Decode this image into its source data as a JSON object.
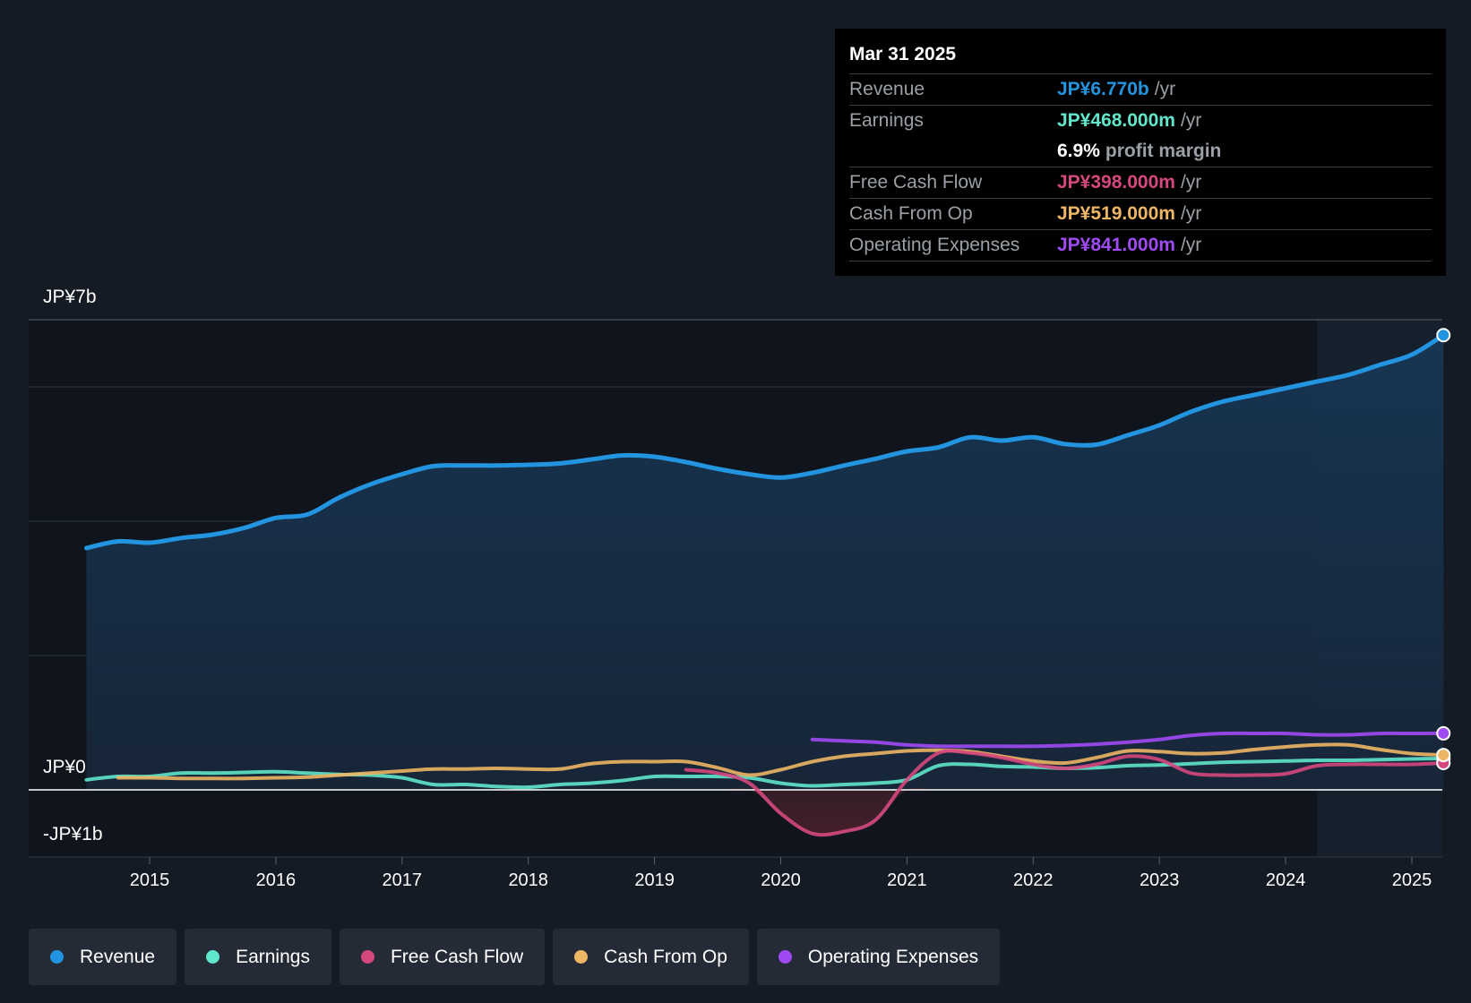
{
  "tooltip": {
    "date": "Mar 31 2025",
    "rows": [
      {
        "label": "Revenue",
        "value": "JP¥6.770b",
        "unit": "/yr",
        "color": "#2394df"
      },
      {
        "label": "Earnings",
        "value": "JP¥468.000m",
        "unit": "/yr",
        "color": "#60e6cb"
      },
      {
        "label": "",
        "value": "6.9%",
        "unit": "profit margin",
        "color": "#ffffff"
      },
      {
        "label": "Free Cash Flow",
        "value": "JP¥398.000m",
        "unit": "/yr",
        "color": "#d5487e"
      },
      {
        "label": "Cash From Op",
        "value": "JP¥519.000m",
        "unit": "/yr",
        "color": "#edb664"
      },
      {
        "label": "Operating Expenses",
        "value": "JP¥841.000m",
        "unit": "/yr",
        "color": "#a04af4"
      }
    ]
  },
  "axis": {
    "y_top_label": "JP¥7b",
    "y_zero_label": "JP¥0",
    "y_bottom_label": "-JP¥1b"
  },
  "legend": [
    {
      "label": "Revenue",
      "color": "#2394df"
    },
    {
      "label": "Earnings",
      "color": "#60e6cb"
    },
    {
      "label": "Free Cash Flow",
      "color": "#d5487e"
    },
    {
      "label": "Cash From Op",
      "color": "#edb664"
    },
    {
      "label": "Operating Expenses",
      "color": "#a04af4"
    }
  ],
  "chart_data": {
    "type": "line",
    "title": "",
    "xlabel": "",
    "ylabel": "",
    "unit": "JP¥ billions",
    "ylim": [
      -1,
      7
    ],
    "x_ticks": [
      "2015",
      "2016",
      "2017",
      "2018",
      "2019",
      "2020",
      "2021",
      "2022",
      "2023",
      "2024",
      "2025"
    ],
    "forecast_shade_start": 2024.25,
    "series": [
      {
        "name": "Revenue",
        "color": "#2394df",
        "x": [
          2014.5,
          2014.75,
          2015.0,
          2015.25,
          2015.5,
          2015.75,
          2016.0,
          2016.25,
          2016.5,
          2016.75,
          2017.0,
          2017.25,
          2017.5,
          2017.75,
          2018.0,
          2018.25,
          2018.5,
          2018.75,
          2019.0,
          2019.25,
          2019.5,
          2019.75,
          2020.0,
          2020.25,
          2020.5,
          2020.75,
          2021.0,
          2021.25,
          2021.5,
          2021.75,
          2022.0,
          2022.25,
          2022.5,
          2022.75,
          2023.0,
          2023.25,
          2023.5,
          2023.75,
          2024.0,
          2024.25,
          2024.5,
          2024.75,
          2025.0,
          2025.25
        ],
        "values": [
          3.6,
          3.7,
          3.68,
          3.75,
          3.8,
          3.9,
          4.05,
          4.1,
          4.35,
          4.55,
          4.7,
          4.82,
          4.83,
          4.83,
          4.84,
          4.86,
          4.92,
          4.98,
          4.96,
          4.88,
          4.78,
          4.7,
          4.65,
          4.72,
          4.83,
          4.93,
          5.04,
          5.1,
          5.25,
          5.2,
          5.25,
          5.15,
          5.14,
          5.28,
          5.43,
          5.63,
          5.78,
          5.88,
          5.98,
          6.08,
          6.18,
          6.33,
          6.48,
          6.77
        ]
      },
      {
        "name": "Earnings",
        "color": "#60e6cb",
        "x": [
          2014.5,
          2014.75,
          2015.0,
          2015.25,
          2015.5,
          2015.75,
          2016.0,
          2016.25,
          2016.5,
          2016.75,
          2017.0,
          2017.25,
          2017.5,
          2017.75,
          2018.0,
          2018.25,
          2018.5,
          2018.75,
          2019.0,
          2019.25,
          2019.5,
          2019.75,
          2020.0,
          2020.25,
          2020.5,
          2020.75,
          2021.0,
          2021.25,
          2021.5,
          2021.75,
          2022.0,
          2022.25,
          2022.5,
          2022.75,
          2023.0,
          2023.25,
          2023.5,
          2023.75,
          2024.0,
          2024.25,
          2024.5,
          2024.75,
          2025.0,
          2025.25
        ],
        "values": [
          0.15,
          0.2,
          0.2,
          0.25,
          0.25,
          0.26,
          0.27,
          0.25,
          0.23,
          0.22,
          0.18,
          0.08,
          0.08,
          0.05,
          0.04,
          0.08,
          0.1,
          0.14,
          0.2,
          0.2,
          0.2,
          0.18,
          0.1,
          0.06,
          0.08,
          0.1,
          0.15,
          0.36,
          0.38,
          0.35,
          0.34,
          0.32,
          0.33,
          0.36,
          0.37,
          0.39,
          0.41,
          0.42,
          0.43,
          0.44,
          0.44,
          0.45,
          0.46,
          0.468
        ]
      },
      {
        "name": "Free Cash Flow",
        "color": "#d5487e",
        "x": [
          2019.25,
          2019.5,
          2019.75,
          2020.0,
          2020.25,
          2020.5,
          2020.75,
          2021.0,
          2021.25,
          2021.5,
          2021.75,
          2022.0,
          2022.25,
          2022.5,
          2022.75,
          2023.0,
          2023.25,
          2023.5,
          2023.75,
          2024.0,
          2024.25,
          2024.5,
          2024.75,
          2025.0,
          2025.25
        ],
        "values": [
          0.3,
          0.25,
          0.1,
          -0.35,
          -0.65,
          -0.62,
          -0.45,
          0.15,
          0.55,
          0.55,
          0.48,
          0.38,
          0.32,
          0.38,
          0.5,
          0.45,
          0.25,
          0.22,
          0.22,
          0.24,
          0.36,
          0.38,
          0.38,
          0.38,
          0.4
        ]
      },
      {
        "name": "Cash From Op",
        "color": "#edb664",
        "x": [
          2014.75,
          2015.0,
          2015.25,
          2015.5,
          2015.75,
          2016.0,
          2016.25,
          2016.5,
          2016.75,
          2017.0,
          2017.25,
          2017.5,
          2017.75,
          2018.0,
          2018.25,
          2018.5,
          2018.75,
          2019.0,
          2019.25,
          2019.5,
          2019.75,
          2020.0,
          2020.25,
          2020.5,
          2020.75,
          2021.0,
          2021.25,
          2021.5,
          2021.75,
          2022.0,
          2022.25,
          2022.5,
          2022.75,
          2023.0,
          2023.25,
          2023.5,
          2023.75,
          2024.0,
          2024.25,
          2024.5,
          2024.75,
          2025.0,
          2025.25
        ],
        "values": [
          0.18,
          0.18,
          0.17,
          0.17,
          0.17,
          0.18,
          0.19,
          0.22,
          0.25,
          0.28,
          0.31,
          0.31,
          0.32,
          0.31,
          0.31,
          0.39,
          0.42,
          0.42,
          0.42,
          0.33,
          0.22,
          0.3,
          0.42,
          0.5,
          0.54,
          0.58,
          0.59,
          0.57,
          0.5,
          0.43,
          0.4,
          0.48,
          0.58,
          0.57,
          0.54,
          0.55,
          0.6,
          0.64,
          0.67,
          0.67,
          0.6,
          0.54,
          0.519
        ]
      },
      {
        "name": "Operating Expenses",
        "color": "#a04af4",
        "x": [
          2020.25,
          2020.5,
          2020.75,
          2021.0,
          2021.25,
          2021.5,
          2021.75,
          2022.0,
          2022.25,
          2022.5,
          2022.75,
          2023.0,
          2023.25,
          2023.5,
          2023.75,
          2024.0,
          2024.25,
          2024.5,
          2024.75,
          2025.0,
          2025.25
        ],
        "values": [
          0.75,
          0.73,
          0.71,
          0.67,
          0.65,
          0.65,
          0.65,
          0.65,
          0.66,
          0.68,
          0.71,
          0.75,
          0.81,
          0.84,
          0.84,
          0.84,
          0.82,
          0.82,
          0.84,
          0.84,
          0.841
        ]
      }
    ]
  }
}
